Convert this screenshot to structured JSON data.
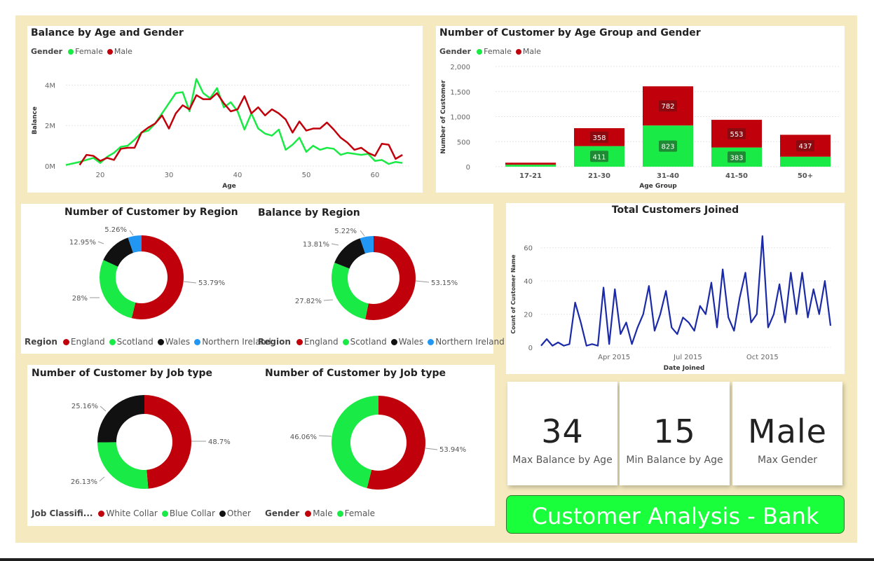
{
  "colors": {
    "female": "#1aea45",
    "male": "#c0000b",
    "wales": "#111111",
    "northern_ireland": "#2196f3",
    "line": "#1a2aa8"
  },
  "header": {
    "title": "Customer Analysis - Bank"
  },
  "kpis": [
    {
      "value": "34",
      "label": "Max Balance by Age"
    },
    {
      "value": "15",
      "label": "Min Balance by Age"
    },
    {
      "value": "Male",
      "label": "Max Gender"
    }
  ],
  "chart_data": [
    {
      "id": "balance_age_gender",
      "type": "line",
      "title": "Balance by Age and Gender",
      "legend": {
        "title": "Gender",
        "items": [
          "Female",
          "Male"
        ]
      },
      "xlabel": "Age",
      "ylabel": "Balance",
      "xticks": [
        "20",
        "30",
        "40",
        "50",
        "60"
      ],
      "yticks": [
        "0M",
        "2M",
        "4M"
      ],
      "xlim": [
        15,
        65
      ],
      "ylim": [
        0,
        4500000
      ],
      "series": [
        {
          "name": "Female",
          "x": [
            15,
            17,
            18,
            19,
            20,
            21,
            22,
            23,
            24,
            25,
            26,
            27,
            28,
            29,
            30,
            31,
            32,
            33,
            34,
            35,
            36,
            37,
            38,
            39,
            40,
            41,
            42,
            43,
            44,
            45,
            46,
            47,
            48,
            49,
            50,
            51,
            52,
            53,
            54,
            55,
            56,
            57,
            58,
            59,
            60,
            61,
            62,
            63,
            64
          ],
          "y": [
            50000,
            200000,
            300000,
            400000,
            150000,
            450000,
            650000,
            950000,
            1000000,
            1300000,
            1650000,
            1750000,
            2100000,
            2600000,
            3100000,
            3600000,
            3650000,
            2700000,
            4300000,
            3600000,
            3350000,
            3850000,
            2900000,
            3150000,
            2700000,
            1800000,
            2600000,
            1850000,
            1600000,
            1500000,
            1800000,
            800000,
            1050000,
            1400000,
            700000,
            1000000,
            800000,
            900000,
            850000,
            550000,
            650000,
            600000,
            550000,
            600000,
            250000,
            300000,
            100000,
            200000,
            150000
          ]
        },
        {
          "name": "Male",
          "x": [
            17,
            18,
            19,
            20,
            21,
            22,
            23,
            24,
            25,
            26,
            27,
            28,
            29,
            30,
            31,
            32,
            33,
            34,
            35,
            36,
            37,
            38,
            39,
            40,
            41,
            42,
            43,
            44,
            45,
            46,
            47,
            48,
            49,
            50,
            51,
            52,
            53,
            54,
            55,
            56,
            57,
            58,
            59,
            60,
            61,
            62,
            63,
            64
          ],
          "y": [
            50000,
            550000,
            500000,
            250000,
            400000,
            300000,
            850000,
            900000,
            900000,
            1650000,
            1900000,
            2100000,
            2500000,
            1850000,
            2600000,
            3000000,
            2800000,
            3500000,
            3300000,
            3300000,
            3600000,
            3100000,
            2700000,
            2800000,
            3450000,
            2600000,
            2900000,
            2500000,
            2800000,
            2600000,
            2300000,
            1650000,
            2200000,
            1750000,
            1850000,
            1850000,
            2150000,
            1800000,
            1400000,
            1150000,
            800000,
            900000,
            650000,
            500000,
            1100000,
            1050000,
            350000,
            550000
          ]
        }
      ]
    },
    {
      "id": "customers_age_group",
      "type": "bar",
      "title": "Number of Customer by Age Group and Gender",
      "legend": {
        "title": "Gender",
        "items": [
          "Female",
          "Male"
        ]
      },
      "xlabel": "Age Group",
      "ylabel": "Number of Customer",
      "categories": [
        "17-21",
        "21-30",
        "31-40",
        "41-50",
        "50+"
      ],
      "yticks": [
        "0",
        "500",
        "1,000",
        "1,500",
        "2,000"
      ],
      "ylim": [
        0,
        2000
      ],
      "series": [
        {
          "name": "Female",
          "values": [
            40,
            411,
            823,
            383,
            200
          ],
          "labels": [
            "",
            "411",
            "823",
            "383",
            ""
          ]
        },
        {
          "name": "Male",
          "values": [
            40,
            358,
            782,
            553,
            437
          ],
          "labels": [
            "",
            "358",
            "782",
            "553",
            "437"
          ]
        }
      ]
    },
    {
      "id": "customers_region",
      "type": "pie",
      "title": "Number of Customer by Region",
      "legend": {
        "title": "Region",
        "items": [
          "England",
          "Scotland",
          "Wales",
          "Northern Ireland"
        ]
      },
      "values": [
        53.79,
        28,
        12.95,
        5.26
      ],
      "labels": [
        "53.79%",
        "28%",
        "12.95%",
        "5.26%"
      ]
    },
    {
      "id": "balance_region",
      "type": "pie",
      "title": "Balance by Region",
      "legend": {
        "title": "Region",
        "items": [
          "England",
          "Scotland",
          "Wales",
          "Northern Ireland"
        ]
      },
      "values": [
        53.15,
        27.82,
        13.81,
        5.22
      ],
      "labels": [
        "53.15%",
        "27.82%",
        "13.81%",
        "5.22%"
      ]
    },
    {
      "id": "customers_job",
      "type": "pie",
      "title": "Number of Customer by Job type",
      "legend": {
        "title": "Job Classifi...",
        "items": [
          "White Collar",
          "Blue Collar",
          "Other"
        ]
      },
      "values": [
        48.7,
        26.13,
        25.16
      ],
      "labels": [
        "48.7%",
        "26.13%",
        "25.16%"
      ]
    },
    {
      "id": "customers_gender",
      "type": "pie",
      "title": "Number of Customer by Job type",
      "legend": {
        "title": "Gender",
        "items": [
          "Male",
          "Female"
        ]
      },
      "values": [
        53.94,
        46.06
      ],
      "labels": [
        "53.94%",
        "46.06%"
      ]
    },
    {
      "id": "customers_joined",
      "type": "line",
      "title": "Total Customers Joined",
      "xlabel": "Date Joined",
      "ylabel": "Count of Customer Name",
      "xticks": [
        "Apr 2015",
        "Jul 2015",
        "Oct 2015"
      ],
      "yticks": [
        "0",
        "20",
        "40",
        "60"
      ],
      "ylim": [
        0,
        70
      ],
      "x": [
        "2015-01-01",
        "2015-01-08",
        "2015-01-15",
        "2015-01-22",
        "2015-01-29",
        "2015-02-05",
        "2015-02-12",
        "2015-02-19",
        "2015-02-26",
        "2015-03-05",
        "2015-03-12",
        "2015-03-19",
        "2015-03-26",
        "2015-04-02",
        "2015-04-09",
        "2015-04-16",
        "2015-04-23",
        "2015-04-30",
        "2015-05-07",
        "2015-05-14",
        "2015-05-21",
        "2015-05-28",
        "2015-06-04",
        "2015-06-11",
        "2015-06-18",
        "2015-06-25",
        "2015-07-02",
        "2015-07-09",
        "2015-07-16",
        "2015-07-23",
        "2015-07-30",
        "2015-08-06",
        "2015-08-13",
        "2015-08-20",
        "2015-08-27",
        "2015-09-03",
        "2015-09-10",
        "2015-09-17",
        "2015-09-24",
        "2015-10-01",
        "2015-10-08",
        "2015-10-15",
        "2015-10-22",
        "2015-10-29",
        "2015-11-05",
        "2015-11-12",
        "2015-11-19",
        "2015-11-26",
        "2015-12-03",
        "2015-12-10",
        "2015-12-17",
        "2015-12-24"
      ],
      "values": [
        1,
        5,
        1,
        3,
        1,
        2,
        27,
        15,
        1,
        2,
        1,
        36,
        2,
        35,
        8,
        15,
        2,
        12,
        20,
        37,
        10,
        20,
        34,
        12,
        8,
        18,
        15,
        10,
        25,
        20,
        39,
        12,
        47,
        18,
        10,
        30,
        45,
        15,
        20,
        67,
        12,
        20,
        38,
        15,
        45,
        20,
        45,
        18,
        35,
        20,
        40,
        13
      ]
    }
  ]
}
